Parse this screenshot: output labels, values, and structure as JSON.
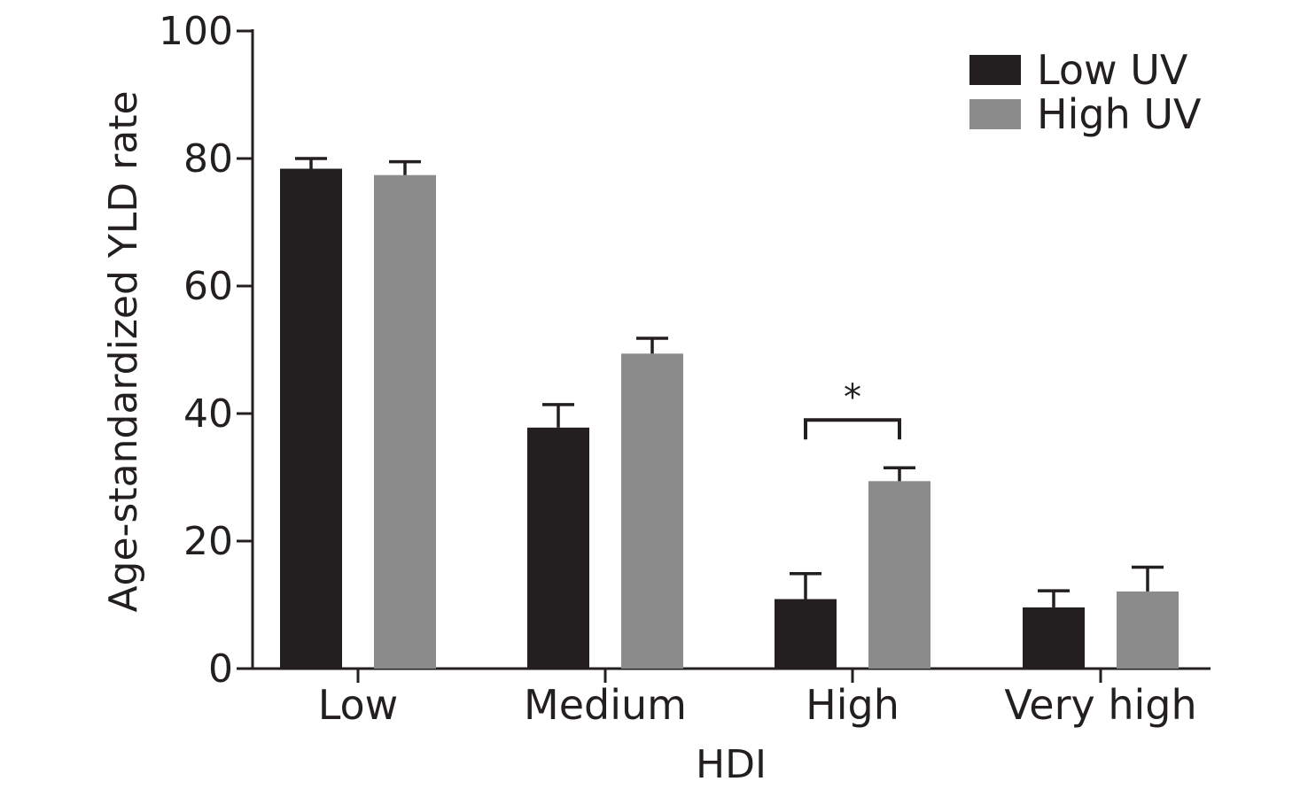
{
  "chart_data": {
    "type": "bar",
    "title": "",
    "xlabel": "HDI",
    "ylabel": "Age-standardized YLD rate",
    "categories": [
      "Low",
      "Medium",
      "High",
      "Very high"
    ],
    "series": [
      {
        "name": "Low UV",
        "color": "#231f20",
        "values": [
          78.4,
          37.8,
          10.9,
          9.6
        ],
        "errors": [
          1.6,
          3.6,
          4.0,
          2.6
        ]
      },
      {
        "name": "High UV",
        "color": "#8c8b8c",
        "values": [
          77.4,
          49.4,
          29.4,
          12.1
        ],
        "errors": [
          2.1,
          2.4,
          2.1,
          3.8
        ]
      }
    ],
    "ylim": [
      0,
      100
    ],
    "yticks": [
      0,
      20,
      40,
      60,
      80,
      100
    ],
    "legend_position": "top-right",
    "grid": false,
    "annotations": [
      {
        "text": "*",
        "category": "High",
        "bracket_value": 39
      }
    ]
  }
}
